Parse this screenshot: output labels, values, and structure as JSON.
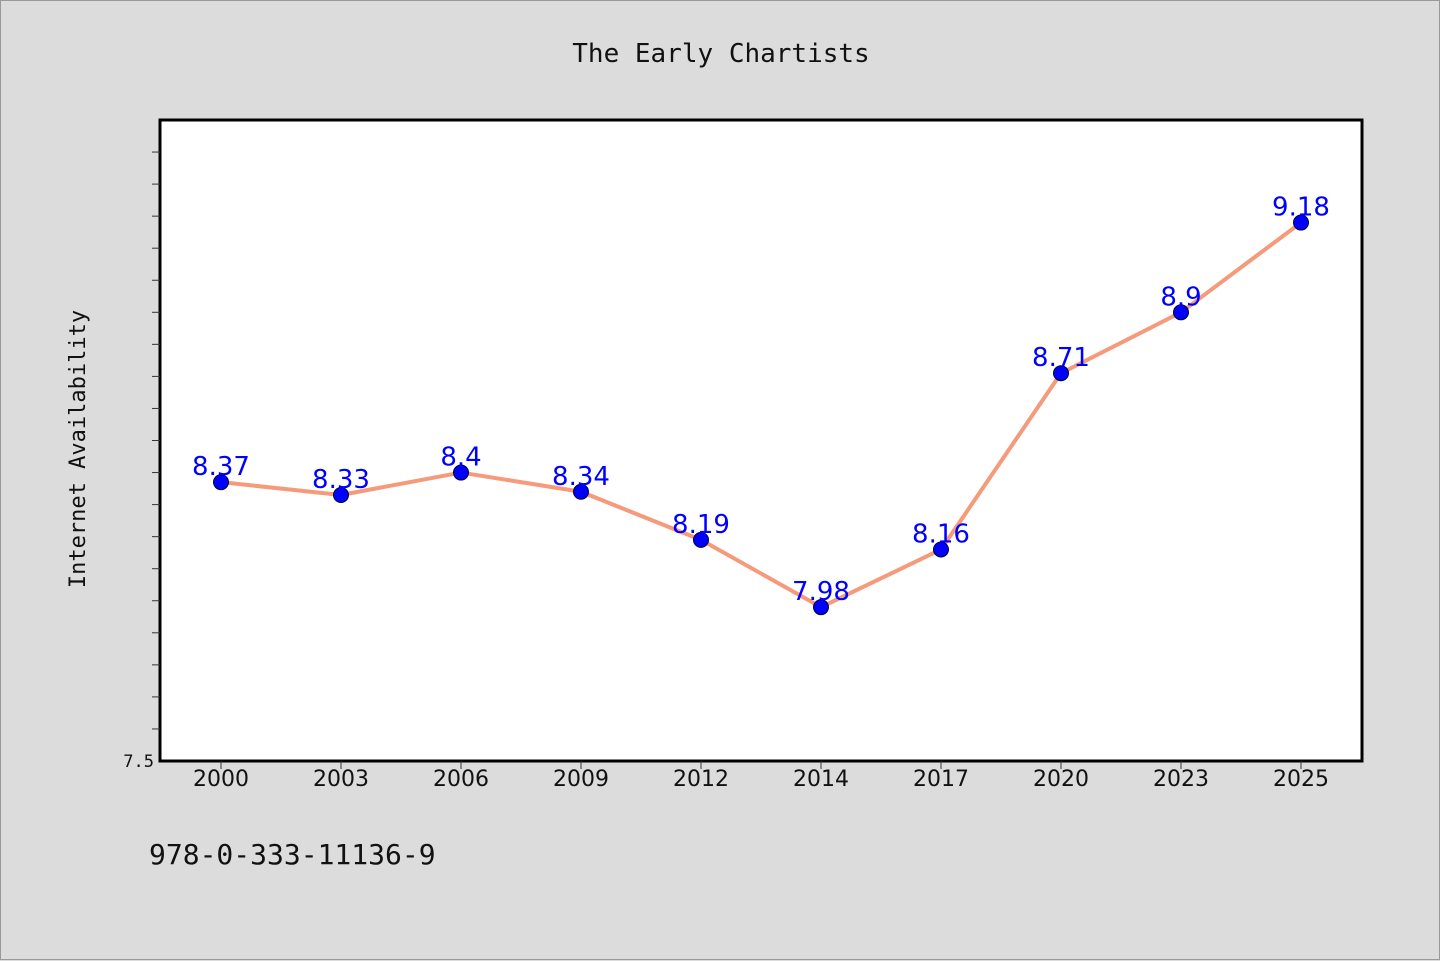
{
  "chart_data": {
    "type": "line",
    "title": "The Early Chartists",
    "xlabel": "",
    "ylabel": "Internet Availability",
    "categories": [
      "2000",
      "2003",
      "2006",
      "2009",
      "2012",
      "2014",
      "2017",
      "2020",
      "2023",
      "2025"
    ],
    "series": [
      {
        "values": [
          8.37,
          8.33,
          8.4,
          8.34,
          8.19,
          7.98,
          8.16,
          8.71,
          8.9,
          9.18
        ],
        "labels": [
          "8.37",
          "8.33",
          "8.4",
          "8.34",
          "8.19",
          "7.98",
          "8.16",
          "8.71",
          "8.9",
          "9.18"
        ]
      }
    ],
    "ytick_labels": [
      "7.5"
    ],
    "ylim": [
      7.5,
      9.5
    ],
    "grid": false,
    "line_color": "#f59a7a",
    "marker_color": "#0000ff",
    "data_label_color": "#0000ff"
  },
  "footer": {
    "isbn": "978-0-333-11136-9"
  }
}
